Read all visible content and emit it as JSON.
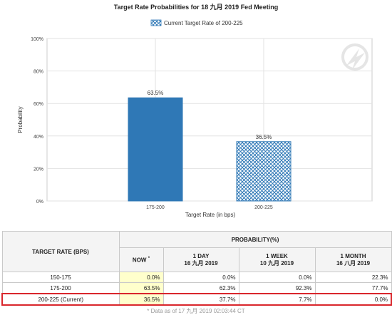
{
  "chart_data": {
    "type": "bar",
    "title": "Target Rate Probabilities for 18 九月 2019 Fed Meeting",
    "legend": "Current Target Rate of 200-225",
    "xlabel": "Target Rate (in bps)",
    "ylabel": "Probability",
    "categories": [
      "175-200",
      "200-225"
    ],
    "values": [
      63.5,
      36.5
    ],
    "data_labels": [
      "63.5%",
      "36.5%"
    ],
    "ylim": [
      0,
      100
    ],
    "yticks": [
      "0%",
      "20%",
      "40%",
      "60%",
      "80%",
      "100%"
    ],
    "styles": [
      "solid",
      "hatched"
    ],
    "colors": {
      "solid": "#2f78b6",
      "hatch": "#2f78b6"
    },
    "grid": true,
    "legend_position": "top"
  },
  "table": {
    "rate_header": "TARGET RATE (BPS)",
    "prob_header": "PROBABILITY(%)",
    "col_now": "NOW",
    "col_now_mark": "*",
    "col_1day": [
      "1 DAY",
      "16 九月 2019"
    ],
    "col_1week": [
      "1 WEEK",
      "10 九月 2019"
    ],
    "col_1month": [
      "1 MONTH",
      "16 八月 2019"
    ],
    "rows": [
      {
        "rate": "150-175",
        "now": "0.0%",
        "d1": "0.0%",
        "w1": "0.0%",
        "m1": "22.3%"
      },
      {
        "rate": "175-200",
        "now": "63.5%",
        "d1": "62.3%",
        "w1": "92.3%",
        "m1": "77.7%"
      },
      {
        "rate": "200-225 (Current)",
        "now": "36.5%",
        "d1": "37.7%",
        "w1": "7.7%",
        "m1": "0.0%"
      }
    ],
    "footnote": "* Data as of 17 九月 2019 02:03:44 CT"
  }
}
